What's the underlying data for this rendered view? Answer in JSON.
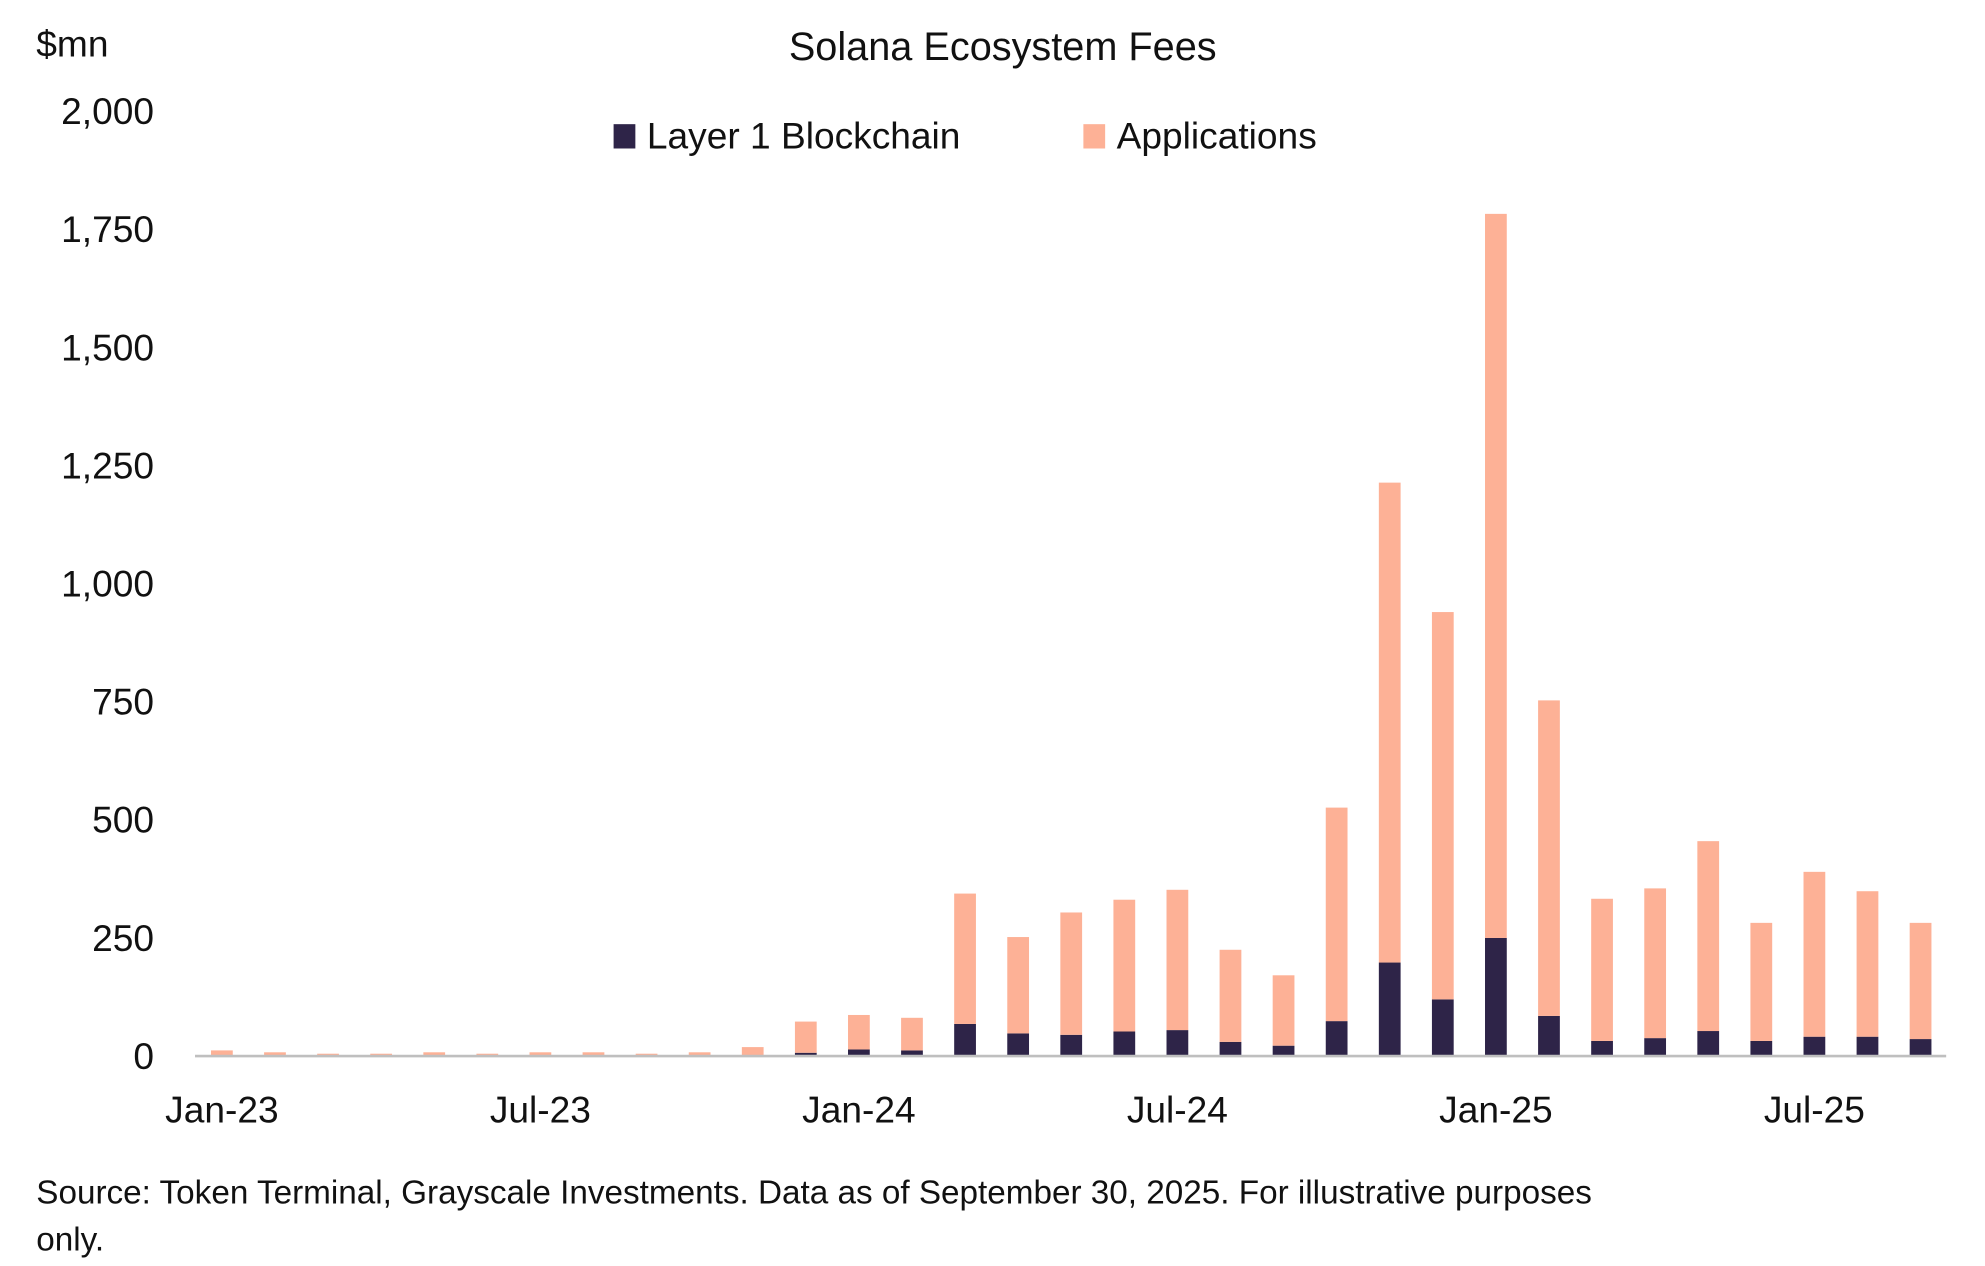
{
  "chart_data": {
    "type": "bar",
    "stacked": true,
    "title": "Solana Ecosystem Fees",
    "ylabel": "$mn",
    "xlabel": "",
    "ylim": [
      0,
      2000
    ],
    "yticks": [
      "0",
      "250",
      "500",
      "750",
      "1,000",
      "1,250",
      "1,500",
      "1,750",
      "2,000"
    ],
    "ytick_values": [
      0,
      250,
      500,
      750,
      1000,
      1250,
      1500,
      1750,
      2000
    ],
    "grid": false,
    "legend": "top-center",
    "categories": [
      "Jan-23",
      "Feb-23",
      "Mar-23",
      "Apr-23",
      "May-23",
      "Jun-23",
      "Jul-23",
      "Aug-23",
      "Sep-23",
      "Oct-23",
      "Nov-23",
      "Dec-23",
      "Jan-24",
      "Feb-24",
      "Mar-24",
      "Apr-24",
      "May-24",
      "Jun-24",
      "Jul-24",
      "Aug-24",
      "Sep-24",
      "Oct-24",
      "Nov-24",
      "Dec-24",
      "Jan-25",
      "Feb-25",
      "Mar-25",
      "Apr-25",
      "May-25",
      "Jun-25",
      "Jul-25",
      "Aug-25",
      "Sep-25"
    ],
    "xtick_labels": [
      "Jan-23",
      "Jul-23",
      "Jan-24",
      "Jul-24",
      "Jan-25",
      "Jul-25"
    ],
    "series": [
      {
        "name": "Layer 1 Blockchain",
        "color": "#2e2448",
        "values": [
          1,
          1,
          1,
          1,
          1,
          1,
          1,
          1,
          1,
          1,
          2,
          7,
          14,
          12,
          68,
          48,
          45,
          52,
          55,
          30,
          22,
          74,
          198,
          120,
          250,
          85,
          32,
          38,
          53,
          32,
          41,
          41,
          36
        ]
      },
      {
        "name": "Applications",
        "color": "#fdb196",
        "values": [
          11,
          7,
          4,
          4,
          7,
          4,
          7,
          7,
          4,
          7,
          17,
          66,
          73,
          69,
          276,
          204,
          259,
          279,
          297,
          195,
          149,
          452,
          1016,
          820,
          1533,
          668,
          301,
          317,
          402,
          250,
          349,
          308,
          246
        ]
      }
    ]
  },
  "source_note": "Source: Token Terminal, Grayscale Investments. Data as of September 30, 2025. For illustrative purposes",
  "source_note_line2": "only."
}
